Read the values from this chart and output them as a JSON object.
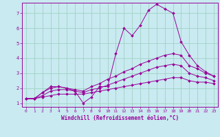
{
  "title": "",
  "xlabel": "Windchill (Refroidissement éolien,°C)",
  "ylabel": "",
  "xlim": [
    -0.5,
    23.5
  ],
  "ylim": [
    0.75,
    7.7
  ],
  "xticks": [
    0,
    1,
    2,
    3,
    4,
    5,
    6,
    7,
    8,
    9,
    10,
    11,
    12,
    13,
    14,
    15,
    16,
    17,
    18,
    19,
    20,
    21,
    22,
    23
  ],
  "yticks": [
    1,
    2,
    3,
    4,
    5,
    6,
    7
  ],
  "bg_color": "#c8eaf0",
  "line_color": "#990099",
  "grid_color": "#99ccbb",
  "series": [
    [
      1.3,
      1.3,
      1.7,
      2.1,
      2.1,
      2.0,
      1.8,
      1.0,
      1.4,
      2.1,
      2.1,
      4.3,
      6.0,
      5.5,
      6.2,
      7.2,
      7.6,
      7.3,
      7.0,
      5.1,
      4.2,
      3.5,
      3.1,
      2.8
    ],
    [
      1.3,
      1.3,
      1.7,
      2.0,
      2.1,
      2.0,
      1.9,
      1.8,
      2.1,
      2.3,
      2.6,
      2.8,
      3.1,
      3.3,
      3.6,
      3.8,
      4.0,
      4.2,
      4.3,
      4.2,
      3.5,
      3.3,
      3.0,
      2.8
    ],
    [
      1.3,
      1.3,
      1.5,
      1.8,
      1.9,
      1.9,
      1.8,
      1.7,
      1.9,
      2.0,
      2.2,
      2.4,
      2.6,
      2.8,
      3.0,
      3.2,
      3.4,
      3.5,
      3.6,
      3.5,
      3.0,
      2.8,
      2.7,
      2.5
    ],
    [
      1.3,
      1.3,
      1.4,
      1.5,
      1.6,
      1.6,
      1.6,
      1.6,
      1.7,
      1.8,
      1.9,
      2.0,
      2.1,
      2.2,
      2.3,
      2.4,
      2.5,
      2.6,
      2.7,
      2.7,
      2.5,
      2.4,
      2.4,
      2.3
    ]
  ]
}
